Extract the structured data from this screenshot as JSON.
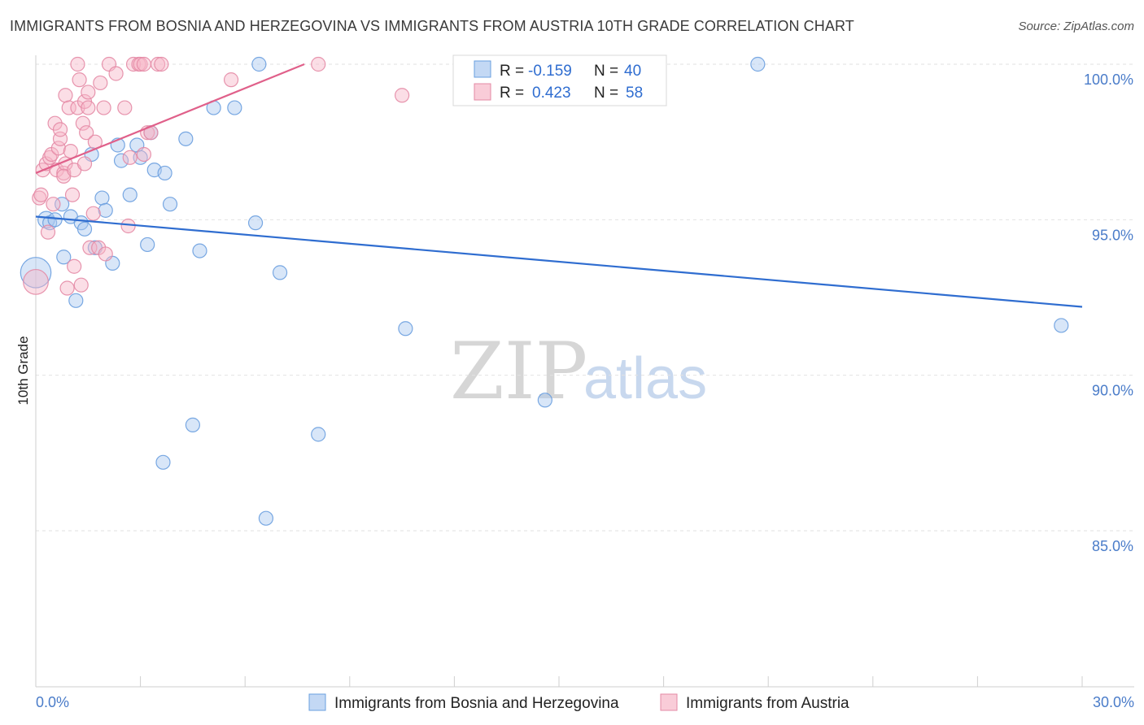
{
  "title": "IMMIGRANTS FROM BOSNIA AND HERZEGOVINA VS IMMIGRANTS FROM AUSTRIA 10TH GRADE CORRELATION CHART",
  "source": "Source: ZipAtlas.com",
  "watermark": {
    "zip": "ZIP",
    "atlas": "atlas"
  },
  "legend": {
    "r_label": "R =",
    "n_label": "N =",
    "rows": [
      {
        "r": "-0.159",
        "n": "40",
        "color": "#a9c8f0"
      },
      {
        "r": "0.423",
        "n": "58",
        "color": "#f7b6c8"
      }
    ]
  },
  "chart_data": {
    "type": "scatter",
    "title": "IMMIGRANTS FROM BOSNIA AND HERZEGOVINA VS IMMIGRANTS FROM AUSTRIA 10TH GRADE CORRELATION CHART",
    "xlabel": "",
    "ylabel": "10th Grade",
    "xlim": [
      0,
      30
    ],
    "ylim": [
      80.0,
      100.8
    ],
    "x_tick_labels": [
      "0.0%",
      "30.0%"
    ],
    "y_ticks": [
      85,
      90,
      95,
      100
    ],
    "y_tick_labels": [
      "85.0%",
      "90.0%",
      "95.0%",
      "100.0%"
    ],
    "grid": true,
    "series": [
      {
        "name": "Immigrants from Bosnia and Herzegovina",
        "color": "#a9c8f0",
        "stroke": "#6a9fdf",
        "trend": {
          "x": [
            0.0,
            30.0
          ],
          "y": [
            95.1,
            92.2
          ],
          "color": "#2f6dd0"
        },
        "points": [
          [
            0.0,
            93.3,
            22
          ],
          [
            0.3,
            95.0,
            12
          ],
          [
            0.4,
            94.9,
            10
          ],
          [
            0.55,
            95.0,
            10
          ],
          [
            0.75,
            95.5,
            10
          ],
          [
            0.8,
            93.8,
            10
          ],
          [
            1.0,
            95.1,
            10
          ],
          [
            1.15,
            92.4,
            10
          ],
          [
            1.3,
            94.9,
            10
          ],
          [
            1.4,
            94.7,
            10
          ],
          [
            1.6,
            97.1,
            10
          ],
          [
            1.7,
            94.1,
            10
          ],
          [
            1.9,
            95.7,
            10
          ],
          [
            2.0,
            95.3,
            10
          ],
          [
            2.2,
            93.6,
            10
          ],
          [
            2.35,
            97.4,
            10
          ],
          [
            2.45,
            96.9,
            10
          ],
          [
            2.7,
            95.8,
            10
          ],
          [
            2.9,
            97.4,
            10
          ],
          [
            3.0,
            97.0,
            10
          ],
          [
            3.2,
            94.2,
            10
          ],
          [
            3.3,
            97.8,
            10
          ],
          [
            3.4,
            96.6,
            10
          ],
          [
            3.7,
            96.5,
            10
          ],
          [
            3.85,
            95.5,
            10
          ],
          [
            4.3,
            97.6,
            10
          ],
          [
            4.7,
            94.0,
            10
          ],
          [
            5.1,
            98.6,
            10
          ],
          [
            5.7,
            98.6,
            10
          ],
          [
            6.3,
            94.9,
            10
          ],
          [
            6.4,
            100.0,
            10
          ],
          [
            7.0,
            93.3,
            10
          ],
          [
            3.65,
            87.2,
            10
          ],
          [
            4.5,
            88.4,
            10
          ],
          [
            6.6,
            85.4,
            10
          ],
          [
            8.1,
            88.1,
            10
          ],
          [
            10.6,
            91.5,
            10
          ],
          [
            14.6,
            89.2,
            10
          ],
          [
            20.7,
            100.0,
            10
          ],
          [
            29.4,
            91.6,
            10
          ]
        ]
      },
      {
        "name": "Immigrants from Austria",
        "color": "#f7b6c8",
        "stroke": "#e48aa5",
        "trend": {
          "x": [
            0.0,
            7.7
          ],
          "y": [
            96.5,
            100.0
          ],
          "color": "#e0608a"
        },
        "points": [
          [
            0.0,
            93.0,
            18
          ],
          [
            0.1,
            95.7,
            10
          ],
          [
            0.15,
            95.8,
            10
          ],
          [
            0.2,
            96.6,
            10
          ],
          [
            0.3,
            96.8,
            10
          ],
          [
            0.35,
            94.6,
            10
          ],
          [
            0.4,
            97.0,
            10
          ],
          [
            0.45,
            97.1,
            10
          ],
          [
            0.5,
            95.5,
            10
          ],
          [
            0.55,
            98.1,
            10
          ],
          [
            0.6,
            96.6,
            10
          ],
          [
            0.65,
            97.3,
            10
          ],
          [
            0.7,
            97.6,
            10
          ],
          [
            0.7,
            97.9,
            10
          ],
          [
            0.8,
            96.5,
            10
          ],
          [
            0.85,
            96.8,
            10
          ],
          [
            0.8,
            96.4,
            10
          ],
          [
            0.85,
            99.0,
            10
          ],
          [
            0.9,
            92.8,
            10
          ],
          [
            0.95,
            98.6,
            10
          ],
          [
            1.0,
            97.2,
            10
          ],
          [
            1.05,
            95.8,
            10
          ],
          [
            1.1,
            96.6,
            10
          ],
          [
            1.1,
            93.5,
            10
          ],
          [
            1.2,
            98.6,
            10
          ],
          [
            1.2,
            100.0,
            10
          ],
          [
            1.25,
            99.5,
            10
          ],
          [
            1.3,
            92.9,
            10
          ],
          [
            1.35,
            98.1,
            10
          ],
          [
            1.4,
            96.8,
            10
          ],
          [
            1.4,
            98.8,
            10
          ],
          [
            1.5,
            98.6,
            10
          ],
          [
            1.45,
            97.8,
            10
          ],
          [
            1.5,
            99.1,
            10
          ],
          [
            1.55,
            94.1,
            10
          ],
          [
            1.65,
            95.2,
            10
          ],
          [
            1.7,
            97.5,
            10
          ],
          [
            1.8,
            94.1,
            10
          ],
          [
            1.85,
            99.4,
            10
          ],
          [
            1.95,
            98.6,
            10
          ],
          [
            2.0,
            93.9,
            10
          ],
          [
            2.1,
            100.0,
            10
          ],
          [
            2.3,
            99.7,
            10
          ],
          [
            2.55,
            98.6,
            10
          ],
          [
            2.65,
            94.8,
            10
          ],
          [
            2.7,
            97.0,
            10
          ],
          [
            2.8,
            100.0,
            10
          ],
          [
            2.95,
            100.0,
            10
          ],
          [
            3.0,
            100.0,
            10
          ],
          [
            3.1,
            97.1,
            10
          ],
          [
            3.1,
            100.0,
            10
          ],
          [
            3.2,
            97.8,
            10
          ],
          [
            3.5,
            100.0,
            10
          ],
          [
            3.6,
            100.0,
            10
          ],
          [
            5.6,
            99.5,
            10
          ],
          [
            8.1,
            100.0,
            10
          ],
          [
            10.5,
            99.0,
            10
          ],
          [
            3.3,
            97.8,
            10
          ]
        ]
      }
    ]
  }
}
